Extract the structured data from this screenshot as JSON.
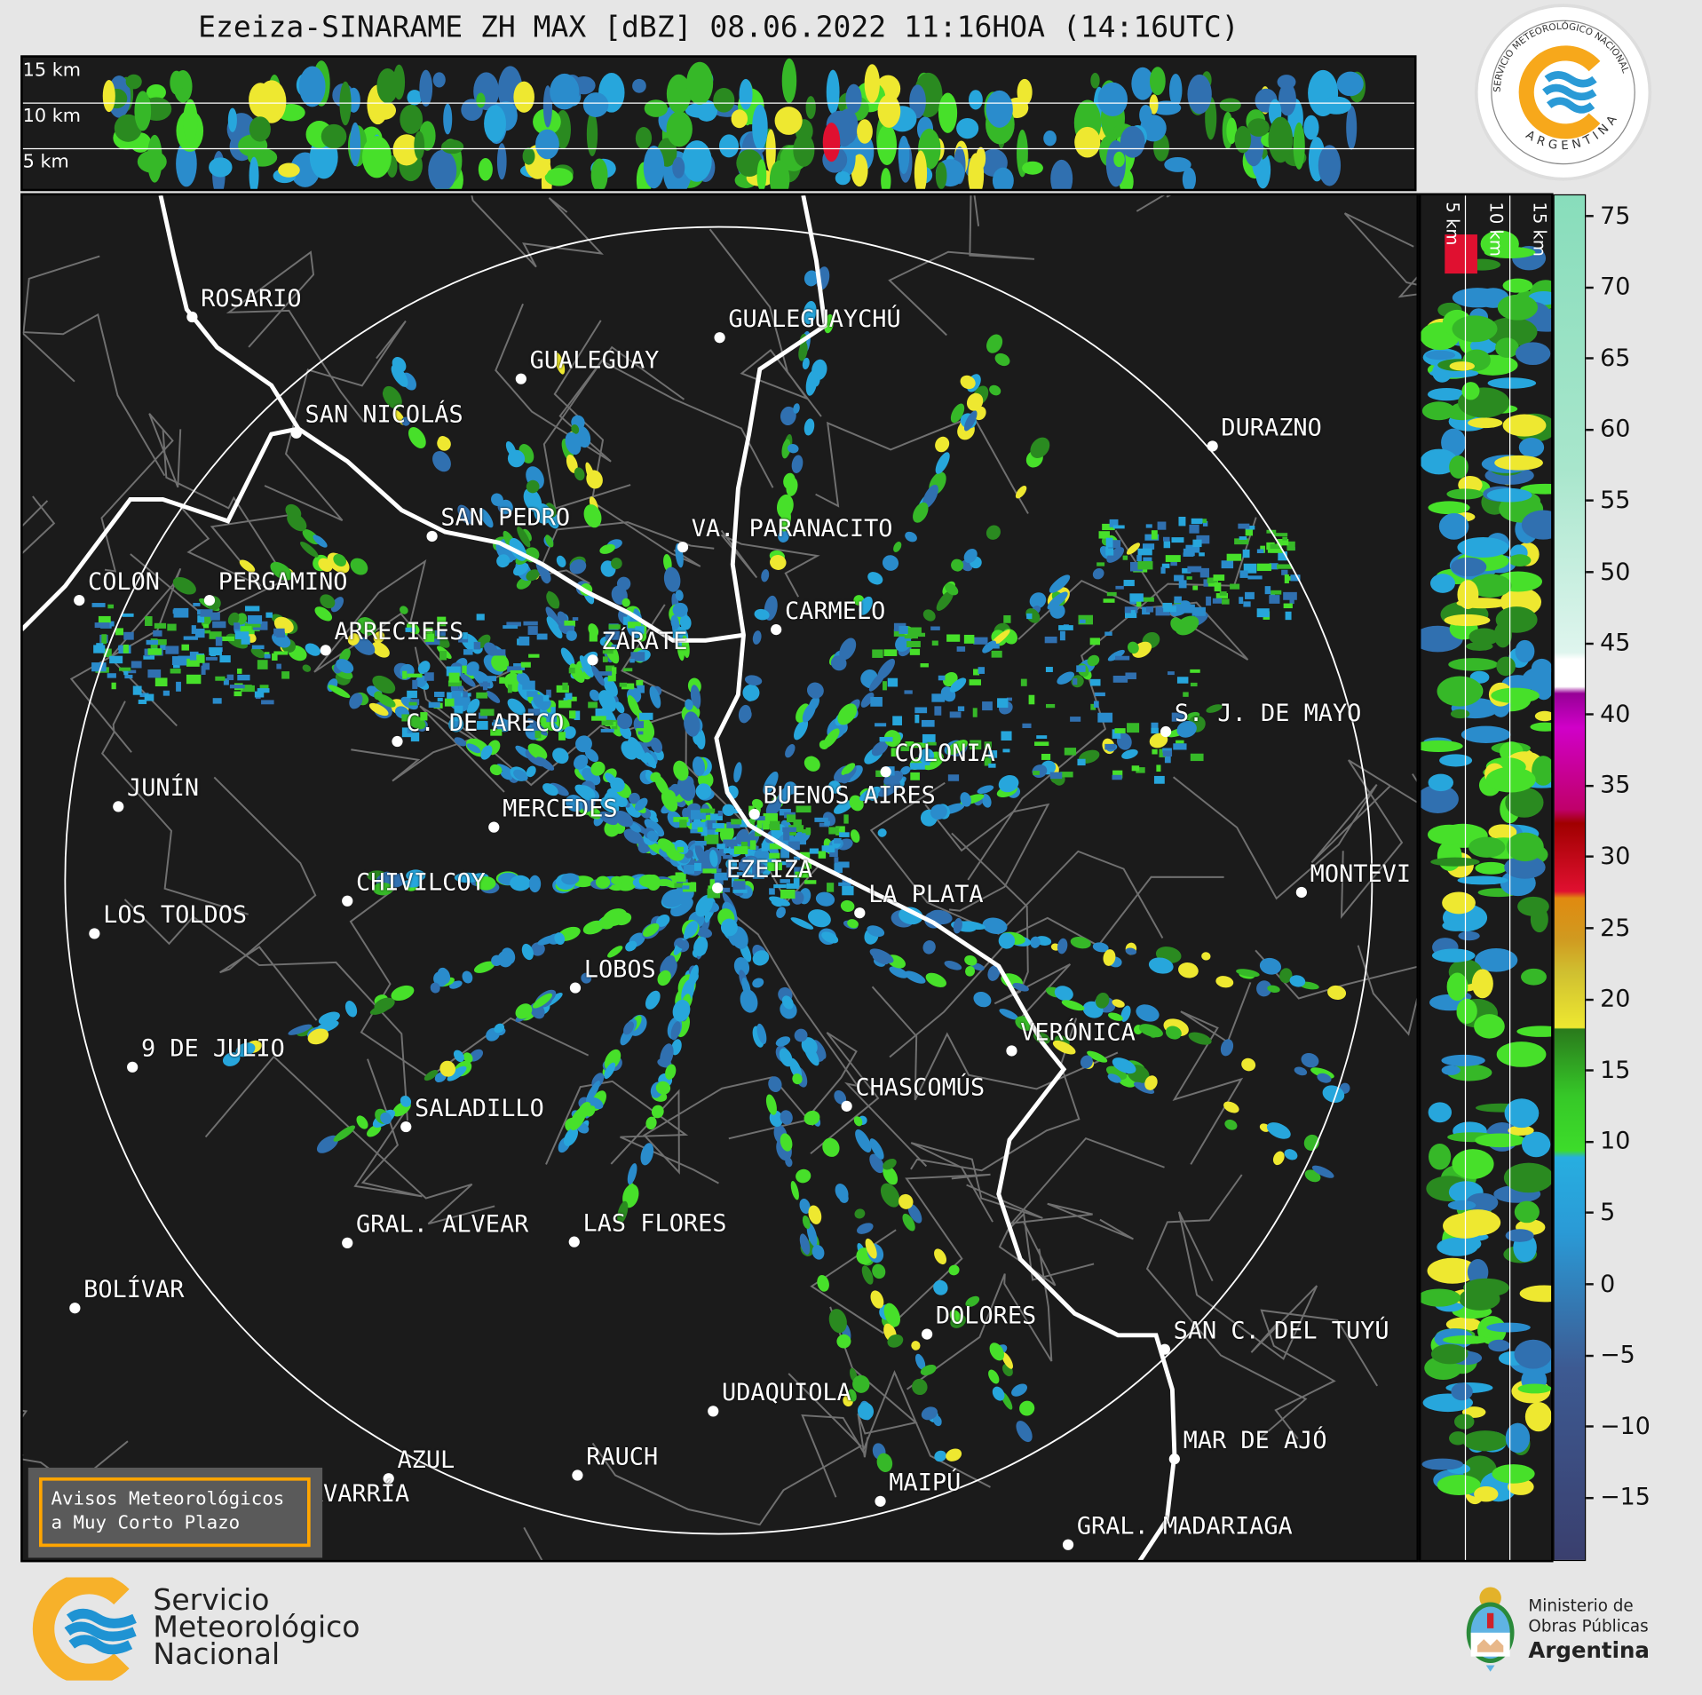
{
  "title": "Ezeiza-SINARAME ZH MAX [dBZ] 08.06.2022 11:16HOA (14:16UTC)",
  "top_panel": {
    "height_labels": [
      "15 km",
      "10 km",
      "5 km"
    ]
  },
  "right_panel": {
    "height_labels": [
      "5 km",
      "10 km",
      "15 km"
    ]
  },
  "colorbar": {
    "variable": "ZH MAX [dBZ]",
    "ticks": [
      "75",
      "70",
      "65",
      "60",
      "55",
      "50",
      "45",
      "40",
      "35",
      "30",
      "25",
      "20",
      "15",
      "10",
      "5",
      "0",
      "−5",
      "−10",
      "−15"
    ],
    "colors": {
      "below_0": "#3a4474",
      "blue": "#2a9ad6",
      "green": "#3ddc2a",
      "dark_green": "#2a7a1c",
      "yellow": "#eee830",
      "orange": "#e08a10",
      "red": "#e01030",
      "magenta": "#d000c8",
      "white": "#ffffff",
      "mint": "#88ddbb"
    }
  },
  "cities": [
    {
      "name": "ROSARIO"
    },
    {
      "name": "GUALEGUAYCHÚ"
    },
    {
      "name": "GUALEGUAY"
    },
    {
      "name": "SAN NICOLÁS"
    },
    {
      "name": "DURAZNO"
    },
    {
      "name": "SAN PEDRO"
    },
    {
      "name": "VA. PARANACITO"
    },
    {
      "name": "COLON"
    },
    {
      "name": "PERGAMINO"
    },
    {
      "name": "CARMELO"
    },
    {
      "name": "ARRECIFES"
    },
    {
      "name": "ZÁRATE"
    },
    {
      "name": "S. J. DE MAYO"
    },
    {
      "name": "C. DE ARECO"
    },
    {
      "name": "COLONIA"
    },
    {
      "name": "JUNÍN"
    },
    {
      "name": "BUENOS AIRES"
    },
    {
      "name": "MERCEDES"
    },
    {
      "name": "MONTEVI"
    },
    {
      "name": "EZEIZA"
    },
    {
      "name": "CHIVILCOY"
    },
    {
      "name": "LA PLATA"
    },
    {
      "name": "LOS TOLDOS"
    },
    {
      "name": "LOBOS"
    },
    {
      "name": "VERÓNICA"
    },
    {
      "name": "9 DE JULIO"
    },
    {
      "name": "CHASCOMÚS"
    },
    {
      "name": "SALADILLO"
    },
    {
      "name": "GRAL. ALVEAR"
    },
    {
      "name": "LAS FLORES"
    },
    {
      "name": "BOLÍVAR"
    },
    {
      "name": "DOLORES"
    },
    {
      "name": "SAN C. DEL TUYÚ"
    },
    {
      "name": "UDAQUIOLA"
    },
    {
      "name": "MAR DE AJÓ"
    },
    {
      "name": "AZUL"
    },
    {
      "name": "RAUCH"
    },
    {
      "name": "OLAVARRÍA"
    },
    {
      "name": "MAIPÚ"
    },
    {
      "name": "GRAL. MADARIAGA"
    }
  ],
  "avisos": {
    "line1": "Avisos Meteorológicos",
    "line2": "a Muy Corto Plazo"
  },
  "seal": {
    "top_text": "SERVICIO METEOROLÓGICO NACIONAL",
    "bottom_text": "ARGENTINA"
  },
  "footer": {
    "smn": [
      "Servicio",
      "Meteorológico",
      "Nacional"
    ],
    "ministry": [
      "Ministerio de",
      "Obras Públicas",
      "Argentina"
    ]
  }
}
